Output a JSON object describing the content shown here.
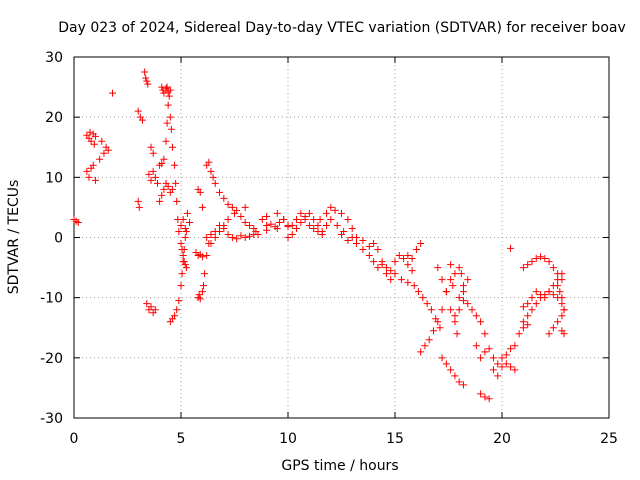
{
  "chart_data": {
    "type": "scatter",
    "title": "Day 023 of 2024, Sidereal Day-to-day VTEC variation (SDTVAR) for receiver boav",
    "xlabel": "GPS time / hours",
    "ylabel": "SDTVAR / TECUs",
    "xlim": [
      0,
      25
    ],
    "ylim": [
      -30,
      30
    ],
    "x_ticks": [
      "0",
      "5",
      "10",
      "15",
      "20",
      "25"
    ],
    "y_ticks": [
      "-30",
      "-20",
      "-10",
      "0",
      "10",
      "20",
      "30"
    ],
    "grid": true,
    "marker": "plus",
    "series_color": "#ff0000",
    "segments": [
      {
        "name": "pass-00",
        "x": [
          0.0,
          0.1,
          0.2
        ],
        "y": [
          3.0,
          2.7,
          2.5
        ]
      },
      {
        "name": "pass-01",
        "x": [
          0.6,
          0.7,
          0.75,
          0.8,
          0.9,
          0.95,
          1.0
        ],
        "y": [
          17.0,
          16.5,
          17.5,
          16.0,
          17.2,
          15.5,
          16.8
        ]
      },
      {
        "name": "pass-02",
        "x": [
          0.6,
          0.7,
          0.8,
          0.9,
          1.0
        ],
        "y": [
          11.0,
          10.0,
          11.5,
          12.0,
          9.5
        ]
      },
      {
        "name": "pass-03",
        "x": [
          1.2,
          1.3,
          1.4,
          1.5,
          1.6
        ],
        "y": [
          13.0,
          16.0,
          14.0,
          15.0,
          14.5
        ]
      },
      {
        "name": "pass-04",
        "x": [
          1.8,
          3.0,
          3.1,
          3.2
        ],
        "y": [
          24.0,
          21.0,
          20.0,
          19.5
        ]
      },
      {
        "name": "pass-05",
        "x": [
          3.0,
          3.05
        ],
        "y": [
          6.0,
          5.0
        ]
      },
      {
        "name": "pass-06",
        "x": [
          3.3,
          3.35,
          3.4,
          3.45
        ],
        "y": [
          27.5,
          26.5,
          26.0,
          25.5
        ]
      },
      {
        "name": "pass-07",
        "x": [
          3.4,
          3.5,
          3.6,
          3.7,
          3.8
        ],
        "y": [
          -11.0,
          -12.0,
          -11.5,
          -12.5,
          -12.0
        ]
      },
      {
        "name": "pass-08",
        "x": [
          3.5,
          3.6,
          3.7,
          3.8,
          3.9
        ],
        "y": [
          10.5,
          9.5,
          11.0,
          10.0,
          9.0
        ]
      },
      {
        "name": "pass-09",
        "x": [
          3.6,
          3.7
        ],
        "y": [
          15.0,
          14.0
        ]
      },
      {
        "name": "pass-10",
        "x": [
          4.1,
          4.15,
          4.2,
          4.3,
          4.35,
          4.4,
          4.45,
          4.5
        ],
        "y": [
          25.0,
          24.5,
          24.0,
          24.8,
          25.0,
          24.2,
          23.5,
          24.5
        ]
      },
      {
        "name": "pass-11",
        "x": [
          4.0,
          4.1,
          4.2,
          4.3,
          4.35,
          4.4,
          4.5,
          4.55,
          4.6,
          4.7,
          4.75,
          4.8,
          4.85,
          4.9,
          5.0,
          5.05,
          5.1,
          5.15,
          5.2,
          5.25
        ],
        "y": [
          12.0,
          12.3,
          13.0,
          16.0,
          19.0,
          22.0,
          20.0,
          18.0,
          15.0,
          12.0,
          9.0,
          6.0,
          3.0,
          1.0,
          -1.0,
          -2.0,
          -3.0,
          -4.0,
          -4.5,
          -5.0
        ]
      },
      {
        "name": "pass-12",
        "x": [
          4.0,
          4.1,
          4.2,
          4.3,
          4.4,
          4.5,
          4.6
        ],
        "y": [
          6.0,
          7.0,
          8.0,
          9.0,
          8.5,
          7.5,
          8.0
        ]
      },
      {
        "name": "pass-13",
        "x": [
          4.5,
          4.6,
          4.7,
          4.8,
          4.9,
          5.0,
          5.05,
          5.1,
          5.15,
          5.2,
          5.25
        ],
        "y": [
          -14.0,
          -13.5,
          -13.0,
          -12.0,
          -10.5,
          -8.0,
          -6.0,
          -4.0,
          -2.0,
          0.0,
          1.0
        ]
      },
      {
        "name": "pass-14",
        "x": [
          5.0,
          5.1,
          5.2,
          5.3,
          5.4
        ],
        "y": [
          2.0,
          3.0,
          1.5,
          4.0,
          2.5
        ]
      },
      {
        "name": "pass-15",
        "x": [
          5.8,
          5.85,
          5.9,
          6.0,
          6.05,
          6.1,
          6.2,
          6.3,
          6.4
        ],
        "y": [
          -10.0,
          -9.5,
          -10.2,
          -9.0,
          -8.0,
          -6.0,
          -3.0,
          -1.0,
          0.5
        ]
      },
      {
        "name": "pass-16",
        "x": [
          5.7,
          5.8,
          5.9,
          6.0
        ],
        "y": [
          -2.5,
          -3.0,
          -2.8,
          -3.2
        ]
      },
      {
        "name": "pass-17",
        "x": [
          5.8,
          5.9,
          6.0
        ],
        "y": [
          8.0,
          7.5,
          5.0
        ]
      },
      {
        "name": "pass-18",
        "x": [
          6.2,
          6.3,
          6.4,
          6.5,
          6.6,
          6.8,
          7.0,
          7.2,
          7.4,
          7.6,
          7.8,
          8.0,
          8.2,
          8.4,
          8.6
        ],
        "y": [
          12.0,
          12.5,
          11.0,
          10.0,
          9.0,
          7.5,
          6.5,
          5.5,
          5.0,
          4.5,
          3.5,
          2.5,
          2.0,
          1.5,
          0.5
        ]
      },
      {
        "name": "pass-19",
        "x": [
          6.2,
          6.4,
          6.6,
          6.8,
          7.0,
          7.2,
          7.4,
          7.6,
          7.8,
          8.0,
          8.2,
          8.4
        ],
        "y": [
          0.0,
          0.5,
          1.0,
          2.0,
          1.5,
          0.5,
          0.0,
          -0.2,
          0.3,
          0.0,
          0.2,
          0.5
        ]
      },
      {
        "name": "pass-20",
        "x": [
          6.4,
          6.6,
          6.8,
          7.0,
          7.2,
          7.5,
          8.0
        ],
        "y": [
          -1.0,
          0.0,
          1.0,
          2.0,
          3.0,
          4.0,
          5.0
        ]
      },
      {
        "name": "pass-21",
        "x": [
          8.5,
          9.0,
          9.5,
          10.0,
          10.2,
          10.4,
          10.6,
          10.8,
          11.0,
          11.2,
          11.4,
          11.6
        ],
        "y": [
          1.0,
          1.2,
          1.5,
          1.8,
          2.0,
          3.0,
          4.0,
          3.0,
          2.0,
          1.5,
          1.0,
          0.5
        ]
      },
      {
        "name": "pass-22",
        "x": [
          9.0,
          9.2,
          9.4,
          9.6,
          9.8,
          10.0
        ],
        "y": [
          2.0,
          2.2,
          1.8,
          2.5,
          3.0,
          2.0
        ]
      },
      {
        "name": "pass-23",
        "x": [
          8.8,
          9.0,
          9.5,
          9.8
        ],
        "y": [
          3.0,
          3.5,
          4.0,
          3.0
        ]
      },
      {
        "name": "pass-24",
        "x": [
          10.0,
          10.2,
          10.4,
          10.6,
          10.8,
          11.0,
          11.2,
          11.4,
          11.6,
          11.8,
          12.0,
          12.3,
          12.6
        ],
        "y": [
          0.0,
          0.5,
          1.5,
          2.5,
          3.5,
          4.0,
          3.0,
          2.0,
          1.0,
          2.0,
          3.0,
          2.0,
          1.0
        ]
      },
      {
        "name": "pass-25",
        "x": [
          11.5,
          11.8,
          12.0,
          12.2,
          12.5,
          12.8,
          13.0,
          13.2
        ],
        "y": [
          3.0,
          4.0,
          5.0,
          4.5,
          4.0,
          3.0,
          1.5,
          0.0
        ]
      },
      {
        "name": "pass-26",
        "x": [
          12.5,
          12.8,
          13.0,
          13.2,
          13.5,
          13.8,
          14.0,
          14.2,
          14.4,
          14.6,
          14.8
        ],
        "y": [
          0.5,
          -0.5,
          0.0,
          -1.0,
          -0.5,
          -1.5,
          -1.0,
          -2.0,
          -4.0,
          -6.0,
          -7.0
        ]
      },
      {
        "name": "pass-27",
        "x": [
          13.5,
          13.8,
          14.0,
          14.2,
          14.4,
          14.6,
          14.8,
          15.0,
          15.2,
          15.4,
          15.6,
          15.8
        ],
        "y": [
          -2.0,
          -3.0,
          -4.0,
          -5.0,
          -4.5,
          -5.0,
          -5.5,
          -4.0,
          -3.0,
          -3.5,
          -4.5,
          -5.5
        ]
      },
      {
        "name": "pass-28",
        "x": [
          15.0,
          15.3,
          15.6,
          15.9,
          16.1,
          16.3,
          16.5,
          16.7,
          16.9,
          17.1
        ],
        "y": [
          -6.0,
          -7.0,
          -7.5,
          -8.0,
          -9.0,
          -10.0,
          -11.0,
          -12.0,
          -13.5,
          -15.0
        ]
      },
      {
        "name": "pass-29",
        "x": [
          15.6,
          15.8,
          16.0,
          16.2
        ],
        "y": [
          -3.0,
          -3.5,
          -2.0,
          -1.0
        ]
      },
      {
        "name": "pass-30",
        "x": [
          16.2,
          16.4,
          16.6,
          16.8,
          17.0,
          17.2,
          17.4,
          17.6,
          17.8,
          18.0
        ],
        "y": [
          -19.0,
          -18.0,
          -17.0,
          -15.5,
          -14.0,
          -12.0,
          -9.0,
          -7.0,
          -6.0,
          -5.0
        ]
      },
      {
        "name": "pass-31",
        "x": [
          17.0,
          17.2,
          17.4,
          17.6,
          17.8,
          18.0,
          18.2,
          18.4
        ],
        "y": [
          -5.0,
          -7.0,
          -9.0,
          -12.0,
          -14.0,
          -12.0,
          -9.0,
          -7.0
        ]
      },
      {
        "name": "pass-32",
        "x": [
          17.2,
          17.4,
          17.6,
          17.8,
          18.0,
          18.2
        ],
        "y": [
          -20.0,
          -21.0,
          -22.0,
          -23.0,
          -24.0,
          -24.5
        ]
      },
      {
        "name": "pass-33",
        "x": [
          17.6,
          17.7,
          17.8,
          17.9,
          18.0,
          18.1,
          18.2
        ],
        "y": [
          -4.5,
          -8.0,
          -13.0,
          -16.0,
          -10.0,
          -6.0,
          -8.0
        ]
      },
      {
        "name": "pass-34",
        "x": [
          18.2,
          18.4,
          18.6,
          18.8,
          19.0,
          19.2
        ],
        "y": [
          -10.5,
          -11.0,
          -12.0,
          -13.0,
          -14.0,
          -16.0
        ]
      },
      {
        "name": "pass-35",
        "x": [
          18.8,
          19.0,
          19.2,
          19.4
        ],
        "y": [
          -18.0,
          -20.0,
          -19.0,
          -18.5
        ]
      },
      {
        "name": "pass-36",
        "x": [
          19.0,
          19.2,
          19.4
        ],
        "y": [
          -26.0,
          -26.5,
          -26.8
        ]
      },
      {
        "name": "pass-37",
        "x": [
          19.6,
          19.8,
          20.0,
          20.2,
          20.4,
          20.6
        ],
        "y": [
          -20.0,
          -21.0,
          -20.0,
          -19.5,
          -18.5,
          -18.0
        ]
      },
      {
        "name": "pass-38",
        "x": [
          19.6,
          19.8,
          20.0
        ],
        "y": [
          -22.0,
          -23.0,
          -21.5
        ]
      },
      {
        "name": "pass-39",
        "x": [
          20.2,
          20.4,
          20.6
        ],
        "y": [
          -21.0,
          -21.5,
          -22.0
        ]
      },
      {
        "name": "pass-40",
        "x": [
          20.4
        ],
        "y": [
          -1.8
        ]
      },
      {
        "name": "pass-41",
        "x": [
          21.0,
          21.2,
          21.4,
          21.6,
          21.8,
          22.0,
          22.2,
          22.4,
          22.6,
          22.8
        ],
        "y": [
          -5.0,
          -4.5,
          -4.0,
          -3.5,
          -3.2,
          -3.5,
          -4.0,
          -5.0,
          -6.0,
          -7.0
        ]
      },
      {
        "name": "pass-42",
        "x": [
          21.0,
          21.2,
          21.4,
          21.6,
          21.8,
          22.0,
          22.2,
          22.4,
          22.6,
          22.8
        ],
        "y": [
          -14.0,
          -13.0,
          -12.0,
          -11.0,
          -10.0,
          -9.5,
          -9.0,
          -8.0,
          -7.0,
          -6.0
        ]
      },
      {
        "name": "pass-43",
        "x": [
          21.0,
          21.2,
          21.4,
          21.6,
          21.8,
          22.0,
          22.2,
          22.4,
          22.6,
          22.8
        ],
        "y": [
          -11.5,
          -11.0,
          -10.0,
          -9.0,
          -9.5,
          -10.0,
          -9.0,
          -9.5,
          -10.0,
          -11.0
        ]
      },
      {
        "name": "pass-44",
        "x": [
          22.2,
          22.4,
          22.6,
          22.8,
          22.9
        ],
        "y": [
          -16.0,
          -15.0,
          -14.0,
          -13.0,
          -12.0
        ]
      },
      {
        "name": "pass-45",
        "x": [
          22.6,
          22.7,
          22.8,
          22.9
        ],
        "y": [
          -8.0,
          -9.0,
          -10.0,
          -12.0
        ]
      },
      {
        "name": "pass-46",
        "x": [
          20.8,
          21.0,
          21.2
        ],
        "y": [
          -16.0,
          -15.0,
          -14.5
        ]
      },
      {
        "name": "pass-47",
        "x": [
          22.8,
          22.9
        ],
        "y": [
          -15.5,
          -16.0
        ]
      }
    ]
  }
}
